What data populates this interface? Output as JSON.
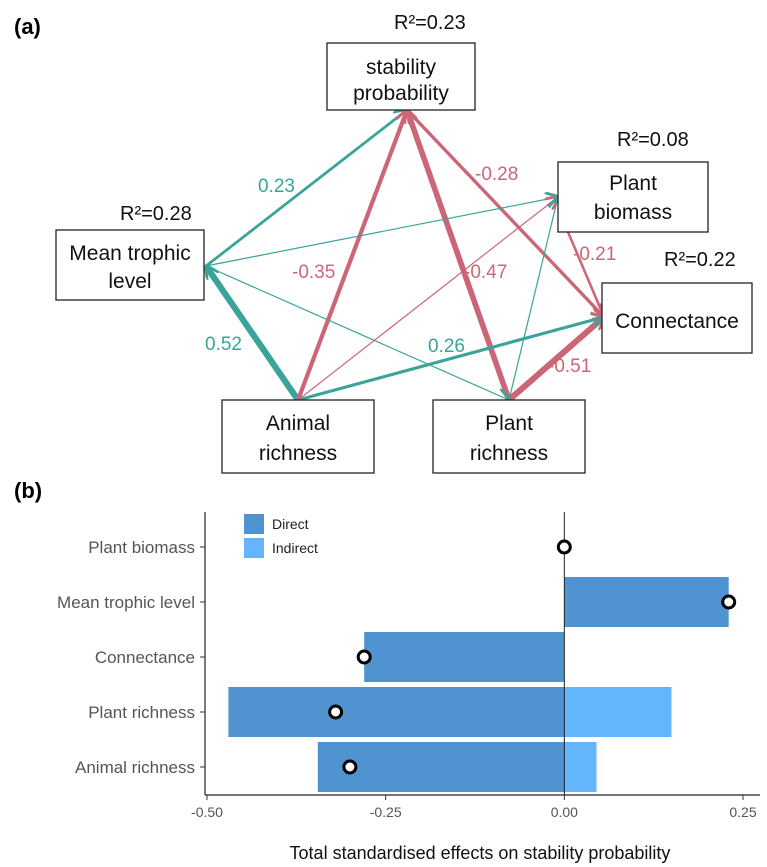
{
  "panel_a": {
    "label": "(a)",
    "nodes": {
      "stability": {
        "lines": [
          "stability",
          "probability"
        ],
        "r2": "R²=0.23"
      },
      "mean_trophic": {
        "lines": [
          "Mean trophic",
          "level"
        ],
        "r2": "R²=0.28"
      },
      "plant_biomass": {
        "lines": [
          "Plant",
          "biomass"
        ],
        "r2": "R²=0.08"
      },
      "connectance": {
        "lines": [
          "Connectance"
        ],
        "r2": "R²=0.22"
      },
      "animal_richness": {
        "lines": [
          "Animal",
          "richness"
        ],
        "r2": ""
      },
      "plant_richness": {
        "lines": [
          "Plant",
          "richness"
        ],
        "r2": ""
      }
    },
    "colors": {
      "positive": "#3aa39a",
      "negative": "#cc6677"
    },
    "paths": [
      {
        "from": "mean_trophic",
        "to": "stability",
        "coef": 0.23,
        "label": "0.23"
      },
      {
        "from": "animal_richness",
        "to": "mean_trophic",
        "coef": 0.52,
        "label": "0.52"
      },
      {
        "from": "animal_richness",
        "to": "stability",
        "coef": -0.35,
        "label": "-0.35"
      },
      {
        "from": "plant_richness",
        "to": "stability",
        "coef": -0.47,
        "label": "-0.47"
      },
      {
        "from": "plant_richness",
        "to": "connectance",
        "coef": -0.51,
        "label": "-0.51"
      },
      {
        "from": "animal_richness",
        "to": "connectance",
        "coef": 0.26,
        "label": "0.26"
      },
      {
        "from": "plant_biomass",
        "to": "connectance",
        "coef": -0.21,
        "label": "-0.21"
      },
      {
        "from": "stability",
        "to": "connectance",
        "coef": -0.28,
        "label": "-0.28"
      },
      {
        "from": "mean_trophic",
        "to": "plant_biomass",
        "coef": 0.1,
        "label": ""
      },
      {
        "from": "mean_trophic",
        "to": "plant_richness",
        "coef": 0.1,
        "label": ""
      },
      {
        "from": "animal_richness",
        "to": "plant_biomass",
        "coef": -0.1,
        "label": ""
      },
      {
        "from": "plant_richness",
        "to": "plant_biomass",
        "coef": 0.1,
        "label": ""
      }
    ]
  },
  "chart_data": {
    "type": "bar",
    "label": "(b)",
    "orientation": "horizontal",
    "stacked": true,
    "categories": [
      "Plant biomass",
      "Mean trophic level",
      "Connectance",
      "Plant richness",
      "Animal richness"
    ],
    "series": [
      {
        "name": "Direct",
        "color": "#4f93d0",
        "values": [
          0.0,
          0.23,
          -0.28,
          -0.47,
          -0.345
        ]
      },
      {
        "name": "Indirect",
        "color": "#64b5fb",
        "values": [
          0.0,
          0.0,
          0.0,
          0.15,
          0.045
        ]
      }
    ],
    "total_points": [
      0.0,
      0.23,
      -0.28,
      -0.32,
      -0.3
    ],
    "xlabel": "Total standardised effects on stability probability",
    "xlim": [
      -0.5,
      0.25
    ],
    "xticks": [
      -0.5,
      -0.25,
      0.0,
      0.25
    ],
    "xtick_labels": [
      "-0.50",
      "-0.25",
      "0.00",
      "0.25"
    ],
    "zero_line": true,
    "grid": false,
    "legend_position": "top-left"
  }
}
